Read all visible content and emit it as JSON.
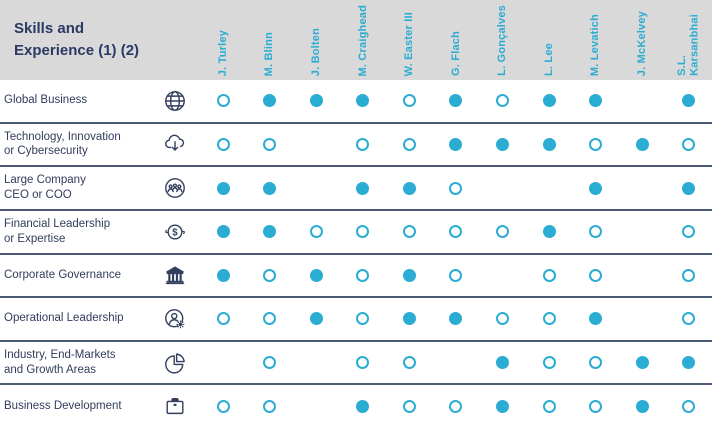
{
  "header": {
    "title": "Skills and\nExperience (1) (2)"
  },
  "colors": {
    "accent": "#2BACD2",
    "navy": "#2B3A64",
    "label": "#323D5C",
    "header_bg": "#D9D9D9",
    "row_line": "#4A5A74",
    "icon": "#333F5E"
  },
  "chart_data": {
    "type": "table",
    "title": "Skills and Experience (1) (2)",
    "columns": [
      "J. Turley",
      "M. Blinn",
      "J. Bolten",
      "M. Craighead",
      "W. Easter III",
      "G. Flach",
      "L. Gonçalves",
      "L. Lee",
      "M. Levatich",
      "J. McKelvey",
      "S.L.\nKarsanbhai"
    ],
    "mark_states": [
      "filled",
      "open",
      "none"
    ],
    "rows": [
      {
        "label": "Global Business",
        "icon": "globe-icon",
        "dots": [
          "open",
          "filled",
          "filled",
          "filled",
          "open",
          "filled",
          "open",
          "filled",
          "filled",
          "none",
          "filled"
        ]
      },
      {
        "label": "Technology, Innovation\nor Cybersecurity",
        "icon": "cloud-download-icon",
        "dots": [
          "open",
          "open",
          "none",
          "open",
          "open",
          "filled",
          "filled",
          "filled",
          "open",
          "filled",
          "open"
        ]
      },
      {
        "label": "Large Company\nCEO or COO",
        "icon": "team-globe-icon",
        "dots": [
          "filled",
          "filled",
          "none",
          "filled",
          "filled",
          "open",
          "none",
          "none",
          "filled",
          "none",
          "filled"
        ]
      },
      {
        "label": "Financial Leadership\nor Expertise",
        "icon": "dollar-cycle-icon",
        "dots": [
          "filled",
          "filled",
          "open",
          "open",
          "open",
          "open",
          "open",
          "filled",
          "open",
          "none",
          "open"
        ]
      },
      {
        "label": "Corporate Governance",
        "icon": "bank-icon",
        "dots": [
          "filled",
          "open",
          "filled",
          "open",
          "filled",
          "open",
          "none",
          "open",
          "open",
          "none",
          "open"
        ]
      },
      {
        "label": "Operational Leadership",
        "icon": "person-gear-icon",
        "dots": [
          "open",
          "open",
          "filled",
          "open",
          "filled",
          "filled",
          "open",
          "open",
          "filled",
          "none",
          "open"
        ]
      },
      {
        "label": "Industry, End-Markets\nand Growth Areas",
        "icon": "pie-chart-icon",
        "dots": [
          "none",
          "open",
          "none",
          "open",
          "open",
          "none",
          "filled",
          "open",
          "open",
          "filled",
          "filled"
        ]
      },
      {
        "label": "Business Development",
        "icon": "briefcase-icon",
        "dots": [
          "open",
          "open",
          "none",
          "filled",
          "open",
          "open",
          "filled",
          "open",
          "open",
          "filled",
          "open"
        ]
      }
    ]
  }
}
